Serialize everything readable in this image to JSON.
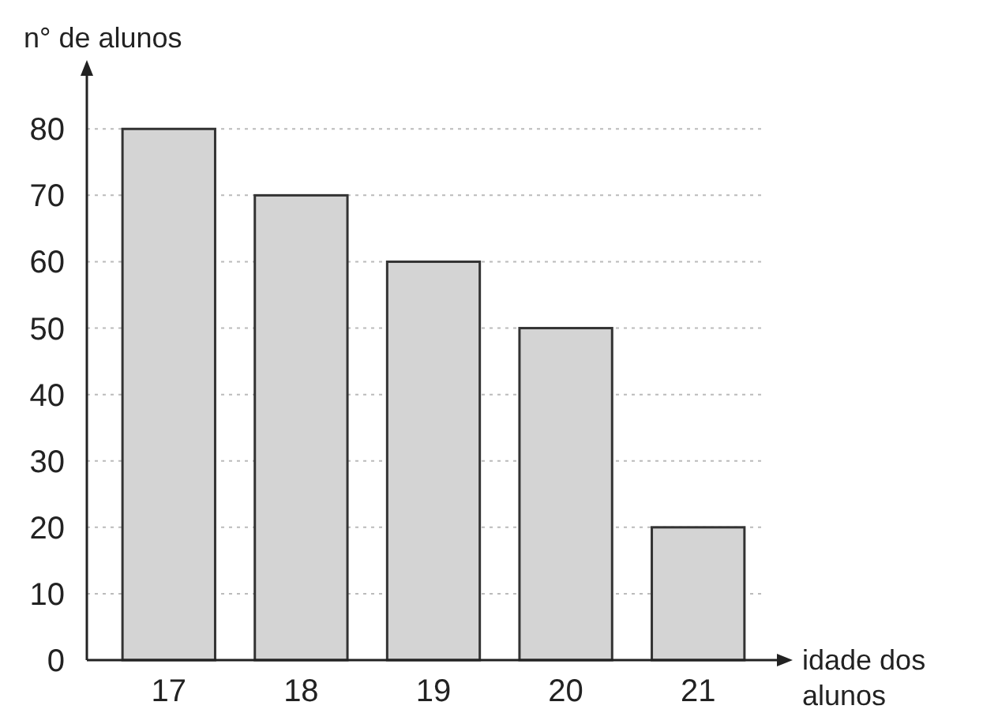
{
  "chart_data": {
    "type": "bar",
    "ylabel": "n° de alunos",
    "xlabel": "idade dos alunos",
    "categories": [
      "17",
      "18",
      "19",
      "20",
      "21"
    ],
    "values": [
      80,
      70,
      60,
      50,
      20
    ],
    "color": "#d4d4d4",
    "ylim": [
      0,
      88
    ],
    "yticks": [
      0,
      10,
      20,
      30,
      40,
      50,
      60,
      70,
      80
    ],
    "grid": "y"
  }
}
